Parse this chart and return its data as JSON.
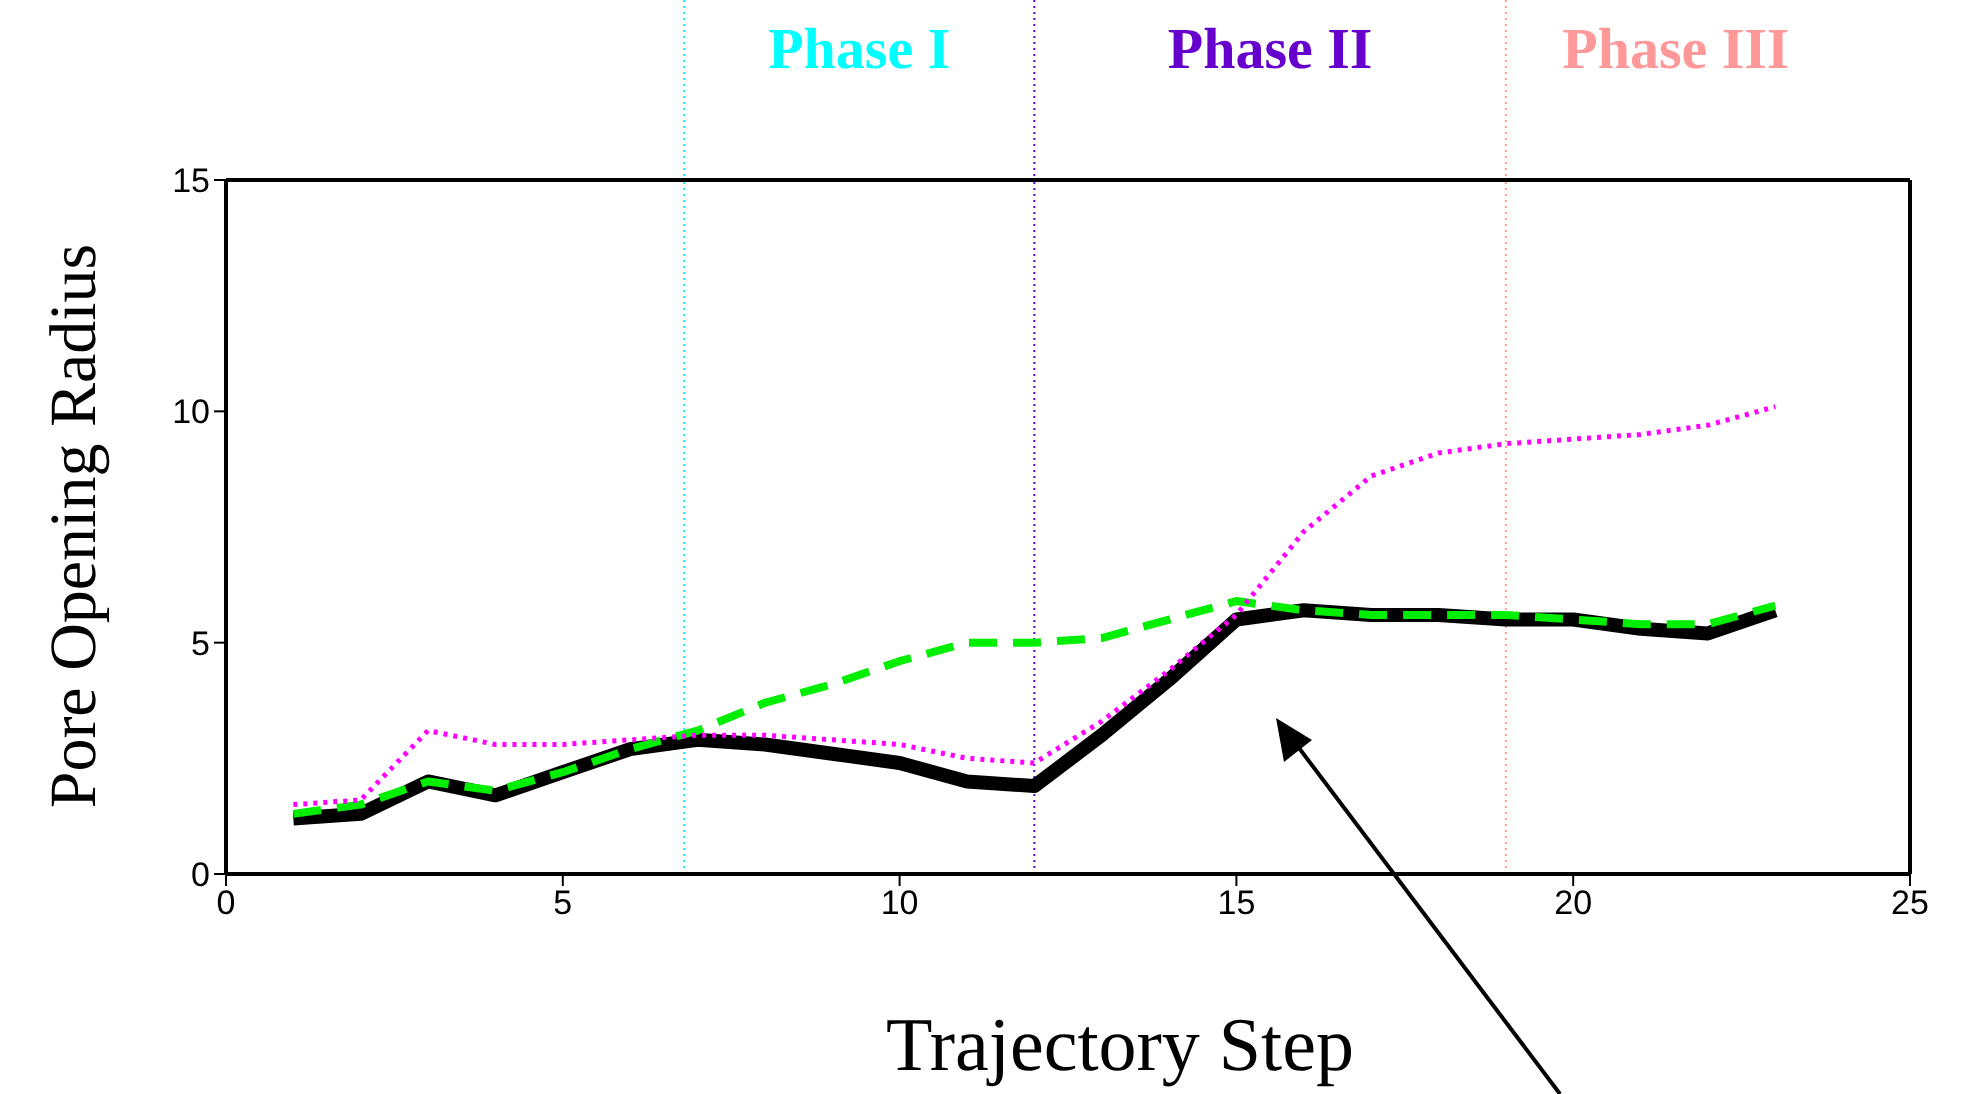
{
  "chart_data": {
    "type": "line",
    "xlabel": "Trajectory Step",
    "ylabel": "Pore Opening Radius",
    "x": [
      1,
      2,
      3,
      4,
      5,
      6,
      7,
      8,
      9,
      10,
      11,
      12,
      13,
      14,
      15,
      16,
      17,
      18,
      19,
      20,
      21,
      22,
      23
    ],
    "series": [
      {
        "color": "#000000",
        "line_style": "solid",
        "values": [
          1.2,
          1.3,
          2.0,
          1.7,
          2.2,
          2.7,
          2.9,
          2.8,
          2.6,
          2.4,
          2.0,
          1.9,
          3.0,
          4.2,
          5.5,
          5.7,
          5.6,
          5.6,
          5.5,
          5.5,
          5.3,
          5.2,
          5.7
        ]
      },
      {
        "color": "#00ee00",
        "line_style": "dashed",
        "values": [
          1.3,
          1.5,
          2.0,
          1.8,
          2.2,
          2.7,
          3.1,
          3.7,
          4.1,
          4.6,
          5.0,
          5.0,
          5.1,
          5.5,
          5.9,
          5.7,
          5.6,
          5.6,
          5.6,
          5.5,
          5.4,
          5.4,
          5.8
        ]
      },
      {
        "color": "#ff00ff",
        "line_style": "dotted",
        "values": [
          1.5,
          1.6,
          3.1,
          2.8,
          2.8,
          2.9,
          3.0,
          3.0,
          2.9,
          2.8,
          2.5,
          2.4,
          3.3,
          4.4,
          5.6,
          7.4,
          8.6,
          9.1,
          9.3,
          9.4,
          9.5,
          9.7,
          10.1
        ]
      }
    ],
    "xlim": [
      0,
      25
    ],
    "xticks": [
      0,
      5,
      10,
      15,
      20,
      25
    ],
    "ylim": [
      0,
      15
    ],
    "yticks": [
      0,
      5,
      10,
      15
    ],
    "grid": false,
    "legend": false,
    "marker": "none",
    "ref_lines": [
      {
        "axis": "x",
        "value": 6.8,
        "label": "Phase I",
        "color": "#00ffff",
        "line_style": "dotted"
      },
      {
        "axis": "x",
        "value": 12,
        "label": "Phase II",
        "color": "#6600cc",
        "line_style": "dotted"
      },
      {
        "axis": "x",
        "value": 19,
        "label": "Phase III",
        "color": "#ff9999",
        "line_style": "dotted"
      }
    ]
  }
}
